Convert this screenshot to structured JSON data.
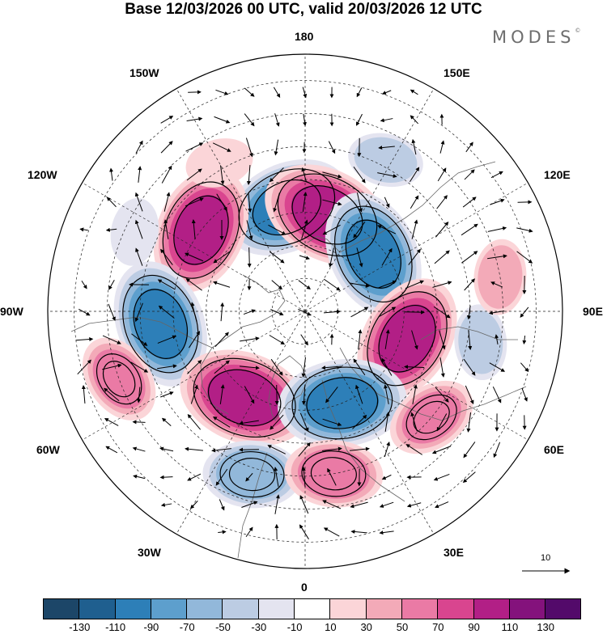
{
  "title": "Base 12/03/2026 00 UTC, valid 20/03/2026 12 UTC",
  "brand": "MODES",
  "brand_mark": "©",
  "longitude_labels": {
    "top": "180",
    "top_left": "150W",
    "top_right": "150E",
    "upper_left": "120W",
    "upper_right": "120E",
    "left": "90W",
    "right": "90E",
    "lower_left": "60W",
    "lower_right": "60E",
    "bottom_left": "30W",
    "bottom_right": "30E",
    "bottom": "0"
  },
  "vector_scale_label": "10",
  "colorbar": {
    "colors": [
      "#1c4668",
      "#1f5f8f",
      "#2d7fb8",
      "#5d9fcd",
      "#92b8da",
      "#bccce3",
      "#e4e4f0",
      "#ffffff",
      "#fbd5d8",
      "#f3aab8",
      "#ea7aa5",
      "#d9458f",
      "#b21f86",
      "#84127c",
      "#530a6a"
    ],
    "ticks": [
      "-130",
      "-110",
      "-90",
      "-70",
      "-50",
      "-30",
      "-10",
      "10",
      "30",
      "50",
      "70",
      "90",
      "110",
      "130"
    ]
  },
  "anomaly_centers": [
    {
      "sign": "negative",
      "value": -110,
      "lon": -170,
      "lat": 58
    },
    {
      "sign": "positive",
      "value": 115,
      "lon": 167,
      "lat": 60
    },
    {
      "sign": "positive",
      "value": 110,
      "lon": -128,
      "lat": 50
    },
    {
      "sign": "negative",
      "value": -110,
      "lon": 130,
      "lat": 63
    },
    {
      "sign": "negative",
      "value": -110,
      "lon": -85,
      "lat": 46
    },
    {
      "sign": "positive",
      "value": 110,
      "lon": 75,
      "lat": 58
    },
    {
      "sign": "positive",
      "value": 115,
      "lon": -35,
      "lat": 58
    },
    {
      "sign": "negative",
      "value": -110,
      "lon": 22,
      "lat": 60
    },
    {
      "sign": "negative",
      "value": -70,
      "lon": -18,
      "lat": 38
    },
    {
      "sign": "positive",
      "value": 70,
      "lon": 10,
      "lat": 40
    },
    {
      "sign": "positive",
      "value": 60,
      "lon": -70,
      "lat": 30
    },
    {
      "sign": "positive",
      "value": 60,
      "lon": 50,
      "lat": 40
    },
    {
      "sign": "negative",
      "value": -40,
      "lon": 80,
      "lat": 36
    },
    {
      "sign": "positive",
      "value": 40,
      "lon": 100,
      "lat": 30
    },
    {
      "sign": "negative",
      "value": -40,
      "lon": 152,
      "lat": 38
    },
    {
      "sign": "positive",
      "value": 30,
      "lon": -150,
      "lat": 38
    },
    {
      "sign": "negative",
      "value": -30,
      "lon": -115,
      "lat": 33
    }
  ]
}
